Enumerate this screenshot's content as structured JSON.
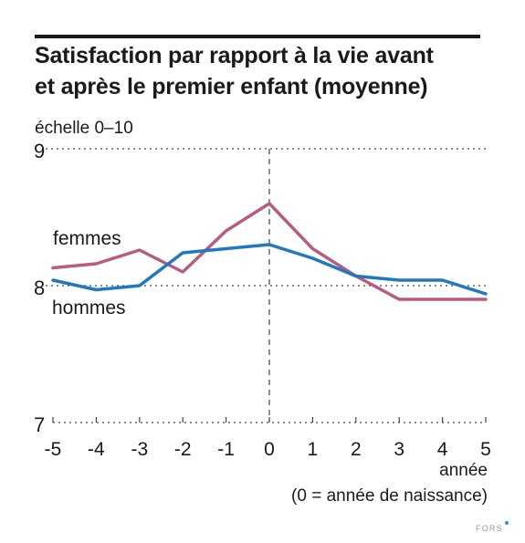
{
  "chart_data": {
    "type": "line",
    "title_lines": [
      "Satisfaction par rapport à la vie avant",
      "et après le premier enfant (moyenne)"
    ],
    "ylabel": "échelle 0–10",
    "xlabel_lines": [
      "année",
      "(0 = année de naissance)"
    ],
    "x": [
      -5,
      -4,
      -3,
      -2,
      -1,
      0,
      1,
      2,
      3,
      4,
      5
    ],
    "x_tick_labels": [
      "-5",
      "-4",
      "-3",
      "-2",
      "-1",
      "0",
      "1",
      "2",
      "3",
      "4",
      "5"
    ],
    "y_ticks": [
      7,
      8,
      9
    ],
    "y_tick_labels": [
      "7",
      "8",
      "9"
    ],
    "ylim": [
      7,
      9
    ],
    "xlim": [
      -5,
      5
    ],
    "grid": "dotted horizontal lines at 8 and 9; dashed vertical line at x = 0",
    "series": [
      {
        "name": "femmes",
        "color": "#b85b82",
        "values": [
          8.13,
          8.16,
          8.26,
          8.1,
          8.4,
          8.6,
          8.27,
          8.07,
          7.9,
          7.9,
          7.9
        ]
      },
      {
        "name": "hommes",
        "color": "#1f78c1",
        "values": [
          8.04,
          7.97,
          8.0,
          8.24,
          8.27,
          8.3,
          8.2,
          8.07,
          8.04,
          8.04,
          7.94
        ]
      }
    ]
  },
  "source": "FORS"
}
